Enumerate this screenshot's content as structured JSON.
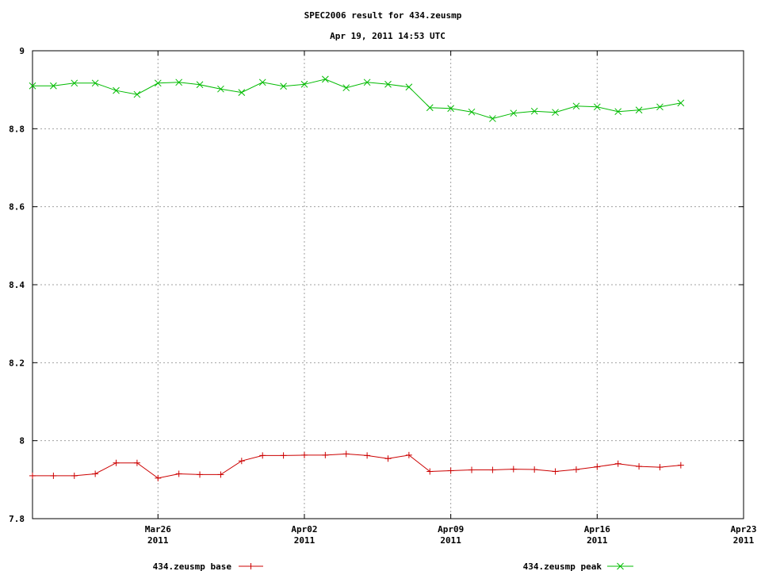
{
  "chart_data": {
    "type": "line",
    "title": "SPEC2006 result for 434.zeusmp",
    "subtitle": "Apr 19, 2011 14:53 UTC",
    "xlabel": "",
    "ylabel": "",
    "ylim": [
      7.8,
      9.0
    ],
    "xlim": [
      "2011-03-20",
      "2011-04-23"
    ],
    "y_ticks": [
      "7.8",
      "8",
      "8.2",
      "8.4",
      "8.6",
      "8.8",
      "9"
    ],
    "x_ticks": [
      {
        "date": "2011-03-26",
        "label": "Mar26",
        "year": "2011"
      },
      {
        "date": "2011-04-02",
        "label": "Apr02",
        "year": "2011"
      },
      {
        "date": "2011-04-09",
        "label": "Apr09",
        "year": "2011"
      },
      {
        "date": "2011-04-16",
        "label": "Apr16",
        "year": "2011"
      },
      {
        "date": "2011-04-23",
        "label": "Apr23",
        "year": "2011"
      }
    ],
    "grid": true,
    "legend_position": "bottom",
    "x": [
      "2011-03-20",
      "2011-03-21",
      "2011-03-22",
      "2011-03-23",
      "2011-03-24",
      "2011-03-25",
      "2011-03-26",
      "2011-03-27",
      "2011-03-28",
      "2011-03-29",
      "2011-03-30",
      "2011-03-31",
      "2011-04-01",
      "2011-04-02",
      "2011-04-03",
      "2011-04-04",
      "2011-04-05",
      "2011-04-06",
      "2011-04-07",
      "2011-04-08",
      "2011-04-09",
      "2011-04-10",
      "2011-04-11",
      "2011-04-12",
      "2011-04-13",
      "2011-04-14",
      "2011-04-15",
      "2011-04-16",
      "2011-04-17",
      "2011-04-18",
      "2011-04-19",
      "2011-04-20"
    ],
    "series": [
      {
        "name": "434.zeusmp base",
        "color": "#cc0000",
        "marker": "plus",
        "values": [
          7.91,
          7.91,
          7.91,
          7.915,
          7.943,
          7.943,
          7.904,
          7.915,
          7.913,
          7.913,
          7.948,
          7.962,
          7.962,
          7.963,
          7.963,
          7.966,
          7.962,
          7.954,
          7.963,
          7.921,
          7.923,
          7.925,
          7.925,
          7.927,
          7.926,
          7.921,
          7.926,
          7.933,
          7.941,
          7.934,
          7.932,
          7.937
        ]
      },
      {
        "name": "434.zeusmp peak",
        "color": "#00bb00",
        "marker": "cross",
        "values": [
          8.91,
          8.91,
          8.917,
          8.917,
          8.898,
          8.888,
          8.917,
          8.919,
          8.913,
          8.902,
          8.893,
          8.919,
          8.909,
          8.914,
          8.927,
          8.905,
          8.919,
          8.914,
          8.907,
          8.854,
          8.852,
          8.843,
          8.826,
          8.84,
          8.845,
          8.842,
          8.858,
          8.856,
          8.844,
          8.848,
          8.856,
          8.866
        ]
      }
    ]
  }
}
